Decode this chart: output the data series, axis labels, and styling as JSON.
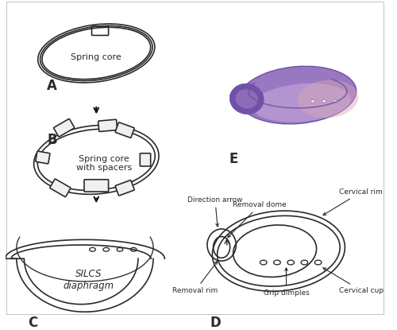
{
  "bg_color": "#ffffff",
  "label_A": "A",
  "label_B": "B",
  "label_C": "C",
  "label_D": "D",
  "label_E": "E",
  "text_A": "Spring core",
  "text_B": "Spring core\nwith spacers",
  "text_C": "SILCS\ndiaphragm",
  "annotations_D": [
    "Direction arrow",
    "Removal dome",
    "Removal rim",
    "Grip dimples",
    "Cervical cup",
    "Cervical rim"
  ],
  "line_color": "#2a2a2a",
  "arrow_color": "#111111",
  "purple_light": "#c8a8d8",
  "purple_mid": "#9878c0",
  "purple_dark": "#7050a8",
  "pink_light": "#d8a8b8",
  "fig_width": 5.0,
  "fig_height": 4.15,
  "dpi": 100
}
